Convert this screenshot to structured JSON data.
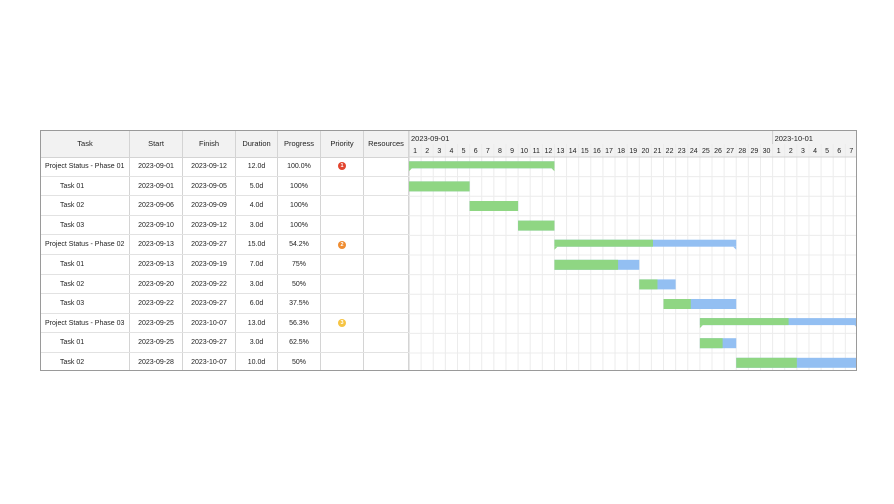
{
  "columns": {
    "task": "Task",
    "start": "Start",
    "finish": "Finish",
    "duration": "Duration",
    "progress": "Progress",
    "priority": "Priority",
    "resources": "Resources"
  },
  "timeline": {
    "month_labels": [
      "2023-09-01",
      "2023-10-01"
    ],
    "day_labels": [
      "1",
      "2",
      "3",
      "4",
      "5",
      "6",
      "7",
      "8",
      "9",
      "10",
      "11",
      "12",
      "13",
      "14",
      "15",
      "16",
      "17",
      "18",
      "19",
      "20",
      "21",
      "22",
      "23",
      "24",
      "25",
      "26",
      "27",
      "28",
      "29",
      "30",
      "1",
      "2",
      "3",
      "4",
      "5",
      "6",
      "7"
    ]
  },
  "colors": {
    "progress": "#8fd683",
    "remaining": "#93bff2",
    "priority_1": "#e2452f",
    "priority_2": "#ef8d32",
    "priority_3": "#f6c443"
  },
  "rows": [
    {
      "task": "Project Status - Phase 01",
      "start": "2023-09-01",
      "finish": "2023-09-12",
      "duration": "12.0d",
      "progress": "100.0%",
      "priority": "1",
      "resources": "",
      "summary": true
    },
    {
      "task": "Task 01",
      "start": "2023-09-01",
      "finish": "2023-09-05",
      "duration": "5.0d",
      "progress": "100%",
      "priority": "",
      "resources": "",
      "summary": false
    },
    {
      "task": "Task 02",
      "start": "2023-09-06",
      "finish": "2023-09-09",
      "duration": "4.0d",
      "progress": "100%",
      "priority": "",
      "resources": "",
      "summary": false
    },
    {
      "task": "Task 03",
      "start": "2023-09-10",
      "finish": "2023-09-12",
      "duration": "3.0d",
      "progress": "100%",
      "priority": "",
      "resources": "",
      "summary": false
    },
    {
      "task": "Project Status - Phase 02",
      "start": "2023-09-13",
      "finish": "2023-09-27",
      "duration": "15.0d",
      "progress": "54.2%",
      "priority": "2",
      "resources": "",
      "summary": true
    },
    {
      "task": "Task 01",
      "start": "2023-09-13",
      "finish": "2023-09-19",
      "duration": "7.0d",
      "progress": "75%",
      "priority": "",
      "resources": "",
      "summary": false
    },
    {
      "task": "Task 02",
      "start": "2023-09-20",
      "finish": "2023-09-22",
      "duration": "3.0d",
      "progress": "50%",
      "priority": "",
      "resources": "",
      "summary": false
    },
    {
      "task": "Task 03",
      "start": "2023-09-22",
      "finish": "2023-09-27",
      "duration": "6.0d",
      "progress": "37.5%",
      "priority": "",
      "resources": "",
      "summary": false
    },
    {
      "task": "Project Status - Phase 03",
      "start": "2023-09-25",
      "finish": "2023-10-07",
      "duration": "13.0d",
      "progress": "56.3%",
      "priority": "3",
      "resources": "",
      "summary": true
    },
    {
      "task": "Task 01",
      "start": "2023-09-25",
      "finish": "2023-09-27",
      "duration": "3.0d",
      "progress": "62.5%",
      "priority": "",
      "resources": "",
      "summary": false
    },
    {
      "task": "Task 02",
      "start": "2023-09-28",
      "finish": "2023-10-07",
      "duration": "10.0d",
      "progress": "50%",
      "priority": "",
      "resources": "",
      "summary": false
    }
  ],
  "chart_data": {
    "type": "table",
    "subtype": "gantt",
    "x_range": [
      "2023-09-01",
      "2023-10-07"
    ],
    "grid": true,
    "tasks": [
      {
        "name": "Project Status - Phase 01",
        "start": "2023-09-01",
        "finish": "2023-09-12",
        "progress": 1.0
      },
      {
        "name": "Task 01",
        "start": "2023-09-01",
        "finish": "2023-09-05",
        "progress": 1.0
      },
      {
        "name": "Task 02",
        "start": "2023-09-06",
        "finish": "2023-09-09",
        "progress": 1.0
      },
      {
        "name": "Task 03",
        "start": "2023-09-10",
        "finish": "2023-09-12",
        "progress": 1.0
      },
      {
        "name": "Project Status - Phase 02",
        "start": "2023-09-13",
        "finish": "2023-09-27",
        "progress": 0.542
      },
      {
        "name": "Task 01",
        "start": "2023-09-13",
        "finish": "2023-09-19",
        "progress": 0.75
      },
      {
        "name": "Task 02",
        "start": "2023-09-20",
        "finish": "2023-09-22",
        "progress": 0.5
      },
      {
        "name": "Task 03",
        "start": "2023-09-22",
        "finish": "2023-09-27",
        "progress": 0.375
      },
      {
        "name": "Project Status - Phase 03",
        "start": "2023-09-25",
        "finish": "2023-10-07",
        "progress": 0.563
      },
      {
        "name": "Task 01",
        "start": "2023-09-25",
        "finish": "2023-09-27",
        "progress": 0.625
      },
      {
        "name": "Task 02",
        "start": "2023-09-28",
        "finish": "2023-10-07",
        "progress": 0.5
      }
    ]
  }
}
